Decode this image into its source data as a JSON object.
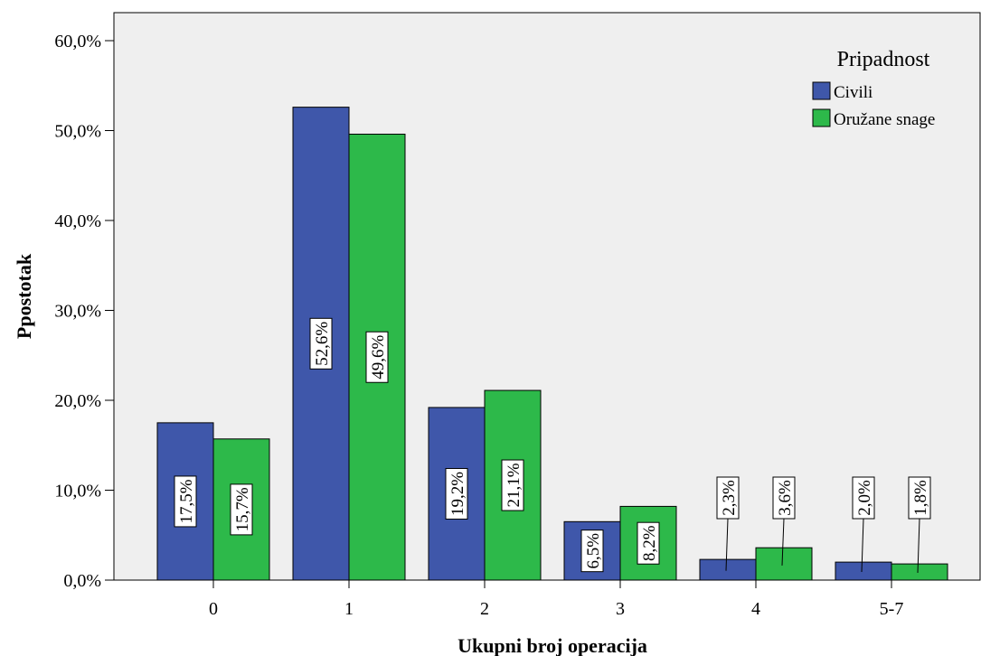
{
  "chart_data": {
    "type": "bar",
    "categories": [
      "0",
      "1",
      "2",
      "3",
      "4",
      "5-7"
    ],
    "series": [
      {
        "name": "Civili",
        "values": [
          17.5,
          52.6,
          19.2,
          6.5,
          2.3,
          2.0
        ],
        "labels": [
          "17,5%",
          "52,6%",
          "19,2%",
          "6,5%",
          "2,3%",
          "2,0%"
        ],
        "color": "#3f57aa"
      },
      {
        "name": "Oružane snage",
        "values": [
          15.7,
          49.6,
          21.1,
          8.2,
          3.6,
          1.8
        ],
        "labels": [
          "15,7%",
          "49,6%",
          "21,1%",
          "8,2%",
          "3,6%",
          "1,8%"
        ],
        "color": "#2db94a"
      }
    ],
    "xlabel": "Ukupni broj operacija",
    "ylabel": "Ppostotak",
    "ylim": [
      0,
      60
    ],
    "yticks": [
      0,
      10,
      20,
      30,
      40,
      50,
      60
    ],
    "ytick_labels": [
      "0,0%",
      "10,0%",
      "20,0%",
      "30,0%",
      "40,0%",
      "50,0%",
      "60,0%"
    ],
    "legend": {
      "title": "Pripadnost",
      "position": "top-right"
    },
    "plot_background": "#efefef",
    "grid": false
  }
}
